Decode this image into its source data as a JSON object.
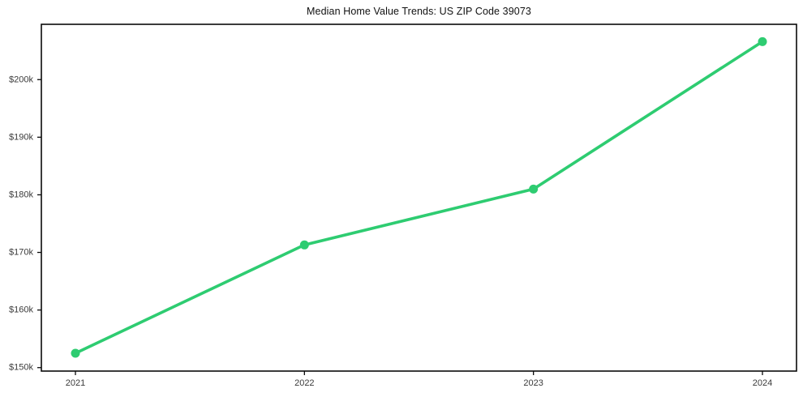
{
  "chart_data": {
    "type": "line",
    "title": "Median Home Value Trends: US ZIP Code 39073",
    "xlabel": "",
    "ylabel": "",
    "x": [
      2021,
      2022,
      2023,
      2024
    ],
    "x_tick_labels": [
      "2021",
      "2022",
      "2023",
      "2024"
    ],
    "series": [
      {
        "name": "Median Home Value",
        "values": [
          152500,
          171300,
          181000,
          206600
        ]
      }
    ],
    "y_ticks": [
      150000,
      160000,
      170000,
      180000,
      190000,
      200000
    ],
    "y_tick_labels": [
      "$150k",
      "$160k",
      "$170k",
      "$180k",
      "$190k",
      "$200k"
    ],
    "ylim": [
      149400,
      209600
    ],
    "grid": false,
    "legend_position": "none",
    "line_color": "#2ecc71",
    "marker_color": "#2ecc71",
    "axis_color": "#0a0a0a",
    "tick_label_color": "#3a3a3a",
    "background_color": "#ffffff"
  }
}
